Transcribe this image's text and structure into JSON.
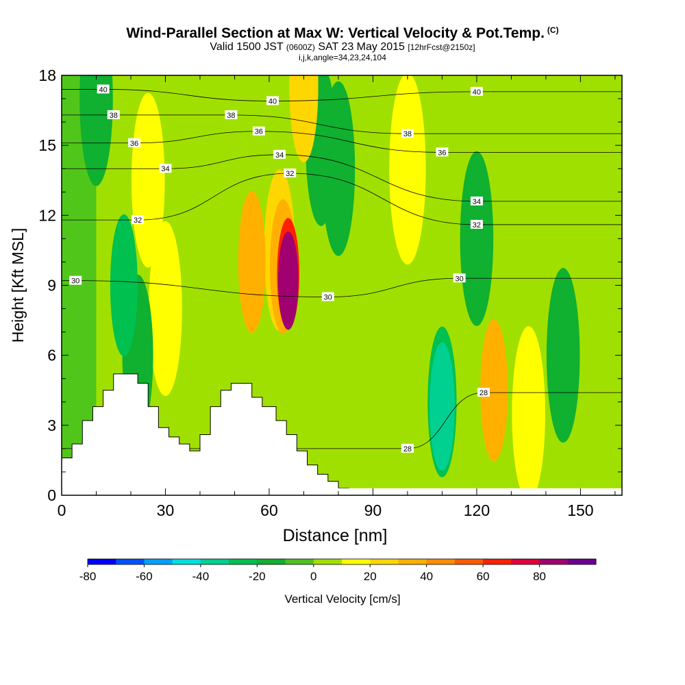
{
  "title": {
    "main": "Wind-Parallel Section at Max W: Vertical Velocity & Pot.Temp.",
    "main_suffix": "(C)",
    "sub_valid": "Valid 1500 JST",
    "sub_zulu": "(0600Z)",
    "sub_date": "SAT 23 May 2015",
    "sub_fcst": "[12hrFcst@2150z]",
    "sub2": "i,j,k,angle=34,23,24,104"
  },
  "chart_data": {
    "type": "heatmap",
    "xlabel": "Distance [nm]",
    "ylabel": "Height [Kft MSL]",
    "xlim": [
      0,
      162
    ],
    "ylim": [
      0,
      18
    ],
    "x_ticks": [
      0,
      30,
      60,
      90,
      120,
      150
    ],
    "y_ticks": [
      0,
      3,
      6,
      9,
      12,
      15,
      18
    ],
    "grid": false,
    "colorbar": {
      "label": "Vertical Velocity [cm/s]",
      "tick_labels": [
        "-80",
        "-60",
        "-40",
        "-20",
        "0",
        "20",
        "40",
        "60",
        "80"
      ],
      "tick_values": [
        -80,
        -60,
        -40,
        -20,
        0,
        20,
        40,
        60,
        80
      ],
      "levels": [
        -80,
        -70,
        -60,
        -50,
        -40,
        -30,
        -20,
        -10,
        0,
        10,
        20,
        30,
        40,
        50,
        60,
        70,
        80,
        90
      ],
      "colors": [
        "#0000ff",
        "#0050ff",
        "#00a0ff",
        "#00e0e0",
        "#00d090",
        "#00c050",
        "#10b030",
        "#50c020",
        "#a0e000",
        "#ffff00",
        "#ffd700",
        "#ffb000",
        "#ff8c00",
        "#ff5a00",
        "#ff2000",
        "#e0003c",
        "#a00070",
        "#6a0090"
      ]
    },
    "terrain": [
      [
        0,
        1.6
      ],
      [
        3,
        1.6
      ],
      [
        3,
        2.2
      ],
      [
        6,
        2.2
      ],
      [
        6,
        3.2
      ],
      [
        9,
        3.2
      ],
      [
        9,
        3.8
      ],
      [
        12,
        3.8
      ],
      [
        12,
        4.5
      ],
      [
        15,
        4.5
      ],
      [
        15,
        5.2
      ],
      [
        22,
        5.2
      ],
      [
        22,
        4.8
      ],
      [
        25,
        4.8
      ],
      [
        25,
        3.8
      ],
      [
        28,
        3.8
      ],
      [
        28,
        2.9
      ],
      [
        31,
        2.9
      ],
      [
        31,
        2.5
      ],
      [
        34,
        2.5
      ],
      [
        34,
        2.2
      ],
      [
        37,
        2.2
      ],
      [
        37,
        1.9
      ],
      [
        40,
        1.9
      ],
      [
        40,
        2.6
      ],
      [
        43,
        2.6
      ],
      [
        43,
        3.8
      ],
      [
        46,
        3.8
      ],
      [
        46,
        4.5
      ],
      [
        49,
        4.5
      ],
      [
        49,
        4.8
      ],
      [
        55,
        4.8
      ],
      [
        55,
        4.2
      ],
      [
        58,
        4.2
      ],
      [
        58,
        3.8
      ],
      [
        62,
        3.8
      ],
      [
        62,
        3.2
      ],
      [
        65,
        3.2
      ],
      [
        65,
        2.6
      ],
      [
        68,
        2.6
      ],
      [
        68,
        1.9
      ],
      [
        71,
        1.9
      ],
      [
        71,
        1.3
      ],
      [
        74,
        1.3
      ],
      [
        74,
        0.9
      ],
      [
        77,
        0.9
      ],
      [
        77,
        0.6
      ],
      [
        80,
        0.6
      ],
      [
        80,
        0.3
      ],
      [
        83,
        0.3
      ],
      [
        83,
        0
      ]
    ],
    "w_features": [
      {
        "x": 65.5,
        "y": 9.2,
        "value": 85
      },
      {
        "x": 65.5,
        "y": 9.5,
        "value": 60
      },
      {
        "x": 64,
        "y": 9.8,
        "value": 35
      },
      {
        "x": 63,
        "y": 10.5,
        "value": 20
      },
      {
        "x": 55,
        "y": 10,
        "value": 30
      },
      {
        "x": 30,
        "y": 8,
        "value": 15
      },
      {
        "x": 70,
        "y": 17.5,
        "value": 25
      },
      {
        "x": 25,
        "y": 13.5,
        "value": 15
      },
      {
        "x": 18,
        "y": 9,
        "value": -30
      },
      {
        "x": 22,
        "y": 6,
        "value": -20
      },
      {
        "x": 110,
        "y": 3.8,
        "value": -40
      },
      {
        "x": 110,
        "y": 4,
        "value": -25
      },
      {
        "x": 125,
        "y": 4.5,
        "value": 30
      },
      {
        "x": 135,
        "y": 3.5,
        "value": 15
      },
      {
        "x": 120,
        "y": 11,
        "value": -15
      },
      {
        "x": 80,
        "y": 14,
        "value": -15
      },
      {
        "x": 75,
        "y": 15,
        "value": -20
      },
      {
        "x": 10,
        "y": 17,
        "value": -15
      },
      {
        "x": 145,
        "y": 6,
        "value": -15
      },
      {
        "x": 100,
        "y": 14,
        "value": 10
      }
    ],
    "theta_contours": [
      {
        "label": "28",
        "label_at": [
          [
            100,
            2
          ],
          [
            122,
            4.4
          ]
        ]
      },
      {
        "label": "30",
        "label_at": [
          [
            4,
            9.2
          ],
          [
            77,
            8.5
          ],
          [
            115,
            9.3
          ]
        ]
      },
      {
        "label": "32",
        "label_at": [
          [
            22,
            11.8
          ],
          [
            66,
            13.8
          ],
          [
            120,
            11.6
          ]
        ]
      },
      {
        "label": "34",
        "label_at": [
          [
            30,
            14
          ],
          [
            63,
            14.6
          ],
          [
            120,
            12.6
          ]
        ]
      },
      {
        "label": "36",
        "label_at": [
          [
            21,
            15.1
          ],
          [
            57,
            15.6
          ],
          [
            110,
            14.7
          ]
        ]
      },
      {
        "label": "38",
        "label_at": [
          [
            15,
            16.3
          ],
          [
            49,
            16.3
          ],
          [
            100,
            15.5
          ]
        ]
      },
      {
        "label": "40",
        "label_at": [
          [
            12,
            17.4
          ],
          [
            61,
            16.9
          ],
          [
            120,
            17.3
          ]
        ]
      }
    ]
  }
}
